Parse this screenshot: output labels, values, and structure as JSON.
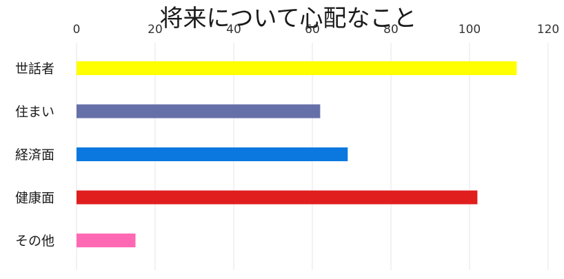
{
  "chart_data": {
    "type": "bar",
    "orientation": "horizontal",
    "title": "将来について心配なこと",
    "categories": [
      "世話者",
      "住まい",
      "経済面",
      "健康面",
      "その他"
    ],
    "values": [
      112,
      62,
      69,
      102,
      15
    ],
    "colors": [
      "#ffff00",
      "#6670a8",
      "#0a78df",
      "#e01e1e",
      "#ff69b4"
    ],
    "xlim": [
      0,
      120
    ],
    "xticks": [
      "0",
      "20",
      "40",
      "60",
      "80",
      "100",
      "120"
    ],
    "xtick_values": [
      0,
      20,
      40,
      60,
      80,
      100,
      120
    ],
    "xlabel": "",
    "ylabel": "",
    "grid": true,
    "legend": "none"
  }
}
